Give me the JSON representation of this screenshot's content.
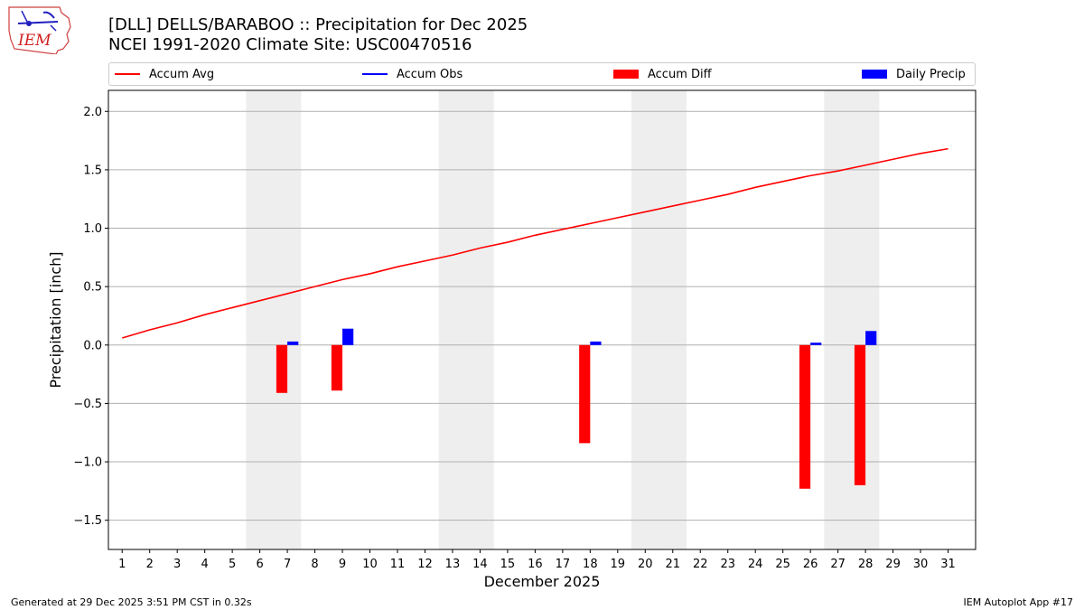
{
  "header": {
    "title": "[DLL] DELLS/BARABOO :: Precipitation for Dec 2025",
    "subtitle": "NCEI 1991-2020 Climate Site: USC00470516",
    "logo_text": "IEM"
  },
  "footer": {
    "left": "Generated at 29 Dec 2025 3:51 PM CST in 0.32s",
    "right": "IEM Autoplot App #17"
  },
  "legend": {
    "placement": "top, above plot",
    "items": [
      {
        "label": "Accum Avg",
        "kind": "line",
        "color": "#ff0000"
      },
      {
        "label": "Accum Obs",
        "kind": "line",
        "color": "#0000ff"
      },
      {
        "label": "Accum Diff",
        "kind": "patch",
        "color": "#ff0000"
      },
      {
        "label": "Daily Precip",
        "kind": "patch",
        "color": "#0000ff"
      }
    ]
  },
  "colors": {
    "avg": "#ff0000",
    "diff": "#ff0000",
    "daily": "#0000ff",
    "weekend_shade": "#eeeeee",
    "grid": "#b0b0b0"
  },
  "chart_data": {
    "type": "bar",
    "title": "[DLL] DELLS/BARABOO :: Precipitation for Dec 2025",
    "xlabel": "December 2025",
    "ylabel": "Precipitation [inch]",
    "xlim": [
      0.5,
      32
    ],
    "ylim": [
      -1.75,
      2.18
    ],
    "yticks": [
      -1.5,
      -1.0,
      -0.5,
      0.0,
      0.5,
      1.0,
      1.5,
      2.0
    ],
    "ytick_labels": [
      "−1.5",
      "−1.0",
      "−0.5",
      "0.0",
      "0.5",
      "1.0",
      "1.5",
      "2.0"
    ],
    "xticks": [
      1,
      2,
      3,
      4,
      5,
      6,
      7,
      8,
      9,
      10,
      11,
      12,
      13,
      14,
      15,
      16,
      17,
      18,
      19,
      20,
      21,
      22,
      23,
      24,
      25,
      26,
      27,
      28,
      29,
      30,
      31
    ],
    "grid": "horizontal",
    "weekend_shading_days": [
      [
        6,
        7
      ],
      [
        13,
        14
      ],
      [
        20,
        21
      ],
      [
        27,
        28
      ]
    ],
    "series": [
      {
        "name": "Accum Avg",
        "kind": "line",
        "x": [
          1,
          2,
          3,
          4,
          5,
          6,
          7,
          8,
          9,
          10,
          11,
          12,
          13,
          14,
          15,
          16,
          17,
          18,
          19,
          20,
          21,
          22,
          23,
          24,
          25,
          26,
          27,
          28,
          29,
          30,
          31
        ],
        "values": [
          0.06,
          0.13,
          0.19,
          0.26,
          0.32,
          0.38,
          0.44,
          0.5,
          0.56,
          0.61,
          0.67,
          0.72,
          0.77,
          0.83,
          0.88,
          0.94,
          0.99,
          1.04,
          1.09,
          1.14,
          1.19,
          1.24,
          1.29,
          1.35,
          1.4,
          1.45,
          1.49,
          1.54,
          1.59,
          1.64,
          1.68
        ]
      },
      {
        "name": "Accum Obs",
        "kind": "line",
        "x": [],
        "values": []
      },
      {
        "name": "Accum Diff",
        "kind": "bar",
        "x": [
          7,
          9,
          18,
          26,
          28
        ],
        "values": [
          -0.41,
          -0.39,
          -0.84,
          -1.23,
          -1.2
        ]
      },
      {
        "name": "Daily Precip",
        "kind": "bar",
        "x": [
          7,
          9,
          18,
          26,
          28
        ],
        "values": [
          0.03,
          0.14,
          0.03,
          0.02,
          0.12
        ]
      }
    ]
  }
}
